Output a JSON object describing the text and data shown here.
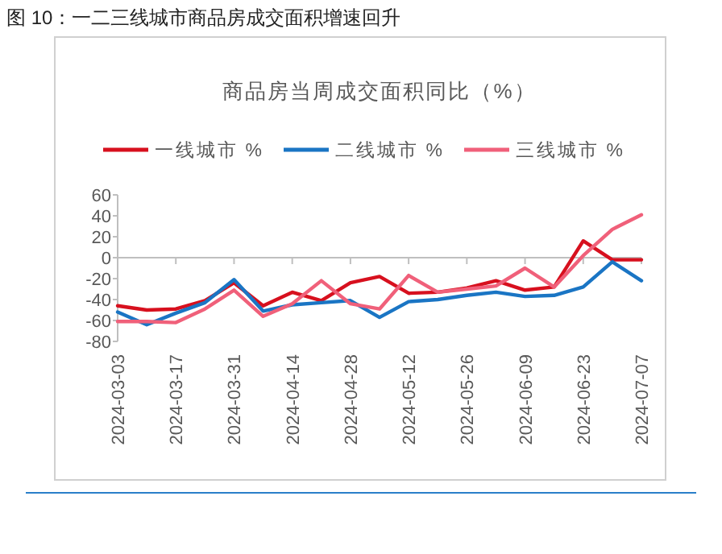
{
  "chart_data": {
    "type": "line",
    "title": "图 10：一二三线城市商品房成交面积增速回升",
    "subtitle": "商品房当周成交面积同比（%）",
    "categories": [
      "2024-03-03",
      null,
      "2024-03-17",
      null,
      "2024-03-31",
      null,
      "2024-04-14",
      null,
      "2024-04-28",
      null,
      "2024-05-12",
      null,
      "2024-05-26",
      null,
      "2024-06-09",
      null,
      "2024-06-23",
      null,
      "2024-07-07"
    ],
    "series": [
      {
        "name": "一线城市 %",
        "color": "#d7101e",
        "values": [
          -46,
          -50,
          -49,
          -41,
          -24,
          -46,
          -33,
          -41,
          -24,
          -18,
          -34,
          -33,
          -29,
          -22,
          -31,
          -28,
          16,
          -2,
          -2
        ]
      },
      {
        "name": "二线城市 %",
        "color": "#1a75c4",
        "values": [
          -52,
          -64,
          -53,
          -43,
          -21,
          -51,
          -45,
          -43,
          -41,
          -57,
          -42,
          -40,
          -36,
          -33,
          -37,
          -36,
          -28,
          -4,
          -22
        ]
      },
      {
        "name": "三线城市 %",
        "color": "#f0607a",
        "values": [
          -61,
          -61,
          -62,
          -49,
          -31,
          -56,
          -44,
          -22,
          -44,
          -49,
          -17,
          -33,
          -30,
          -27,
          -10,
          -28,
          2,
          27,
          41
        ]
      }
    ],
    "ylim": [
      -80,
      60
    ],
    "yticks": [
      -80,
      -60,
      -40,
      -20,
      0,
      20,
      40,
      60
    ],
    "legend": "top",
    "marker": "none",
    "line_style": "solid"
  }
}
